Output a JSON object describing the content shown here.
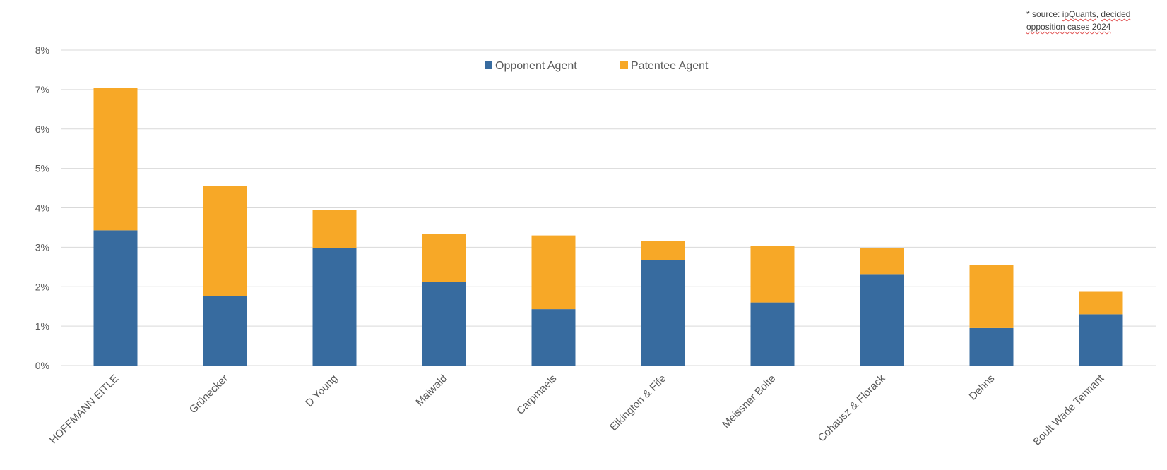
{
  "source_note": {
    "prefix": "* source: ",
    "source_name": "ipQuants",
    "middle": ", ",
    "word": "decided",
    "rest": "opposition cases 2024"
  },
  "colors": {
    "opponent": "#376b9f",
    "patentee": "#f7a827",
    "grid": "#d9d9d9",
    "text": "#595959"
  },
  "chart_data": {
    "type": "bar",
    "stacked": true,
    "title": "",
    "xlabel": "",
    "ylabel": "",
    "ylim": [
      0,
      8
    ],
    "y_unit": "%",
    "y_ticks": [
      "0%",
      "1%",
      "2%",
      "3%",
      "4%",
      "5%",
      "6%",
      "7%",
      "8%"
    ],
    "grid": true,
    "legend_position": "top-center",
    "categories": [
      "HOFFMANN EITLE",
      "Grünecker",
      "D Young",
      "Maiwald",
      "Carpmaels",
      "Elkington & Fife",
      "Meissner Bolte",
      "Cohausz & Florack",
      "Dehns",
      "Boult Wade Tennant"
    ],
    "series": [
      {
        "name": "Opponent Agent",
        "values": [
          3.43,
          1.77,
          2.98,
          2.12,
          1.43,
          2.68,
          1.6,
          2.32,
          0.95,
          1.3
        ]
      },
      {
        "name": "Patentee Agent",
        "values": [
          3.62,
          2.79,
          0.97,
          1.21,
          1.87,
          0.47,
          1.43,
          0.66,
          1.6,
          0.57
        ]
      }
    ]
  }
}
